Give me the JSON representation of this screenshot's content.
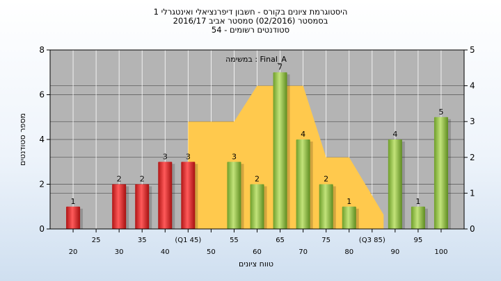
{
  "chart_data": {
    "type": "bar",
    "title_lines": [
      "היסטוגרמת ציונים בקורס - חשבון דיפרנציאלי ואינטגרלי 1",
      "בסמסטר  (02/2016)  סמסטר אביב 2016/17",
      "סטודנטים רשומים - 54"
    ],
    "subtitle": "במשימה : Final_A",
    "xlabel": "טווח ציונים",
    "ylabel": "מספר סטודנטים",
    "ylim": [
      0,
      8
    ],
    "y_ticks": [
      0,
      2,
      4,
      6,
      8
    ],
    "y2lim": [
      0,
      5
    ],
    "y2_ticks": [
      0,
      1,
      2,
      3,
      4,
      5
    ],
    "grid": true,
    "x_range": [
      15,
      105
    ],
    "x_ticks_lower": [
      {
        "x": 20,
        "label": "20"
      },
      {
        "x": 30,
        "label": "30"
      },
      {
        "x": 40,
        "label": "40"
      },
      {
        "x": 50,
        "label": "50"
      },
      {
        "x": 60,
        "label": "60"
      },
      {
        "x": 70,
        "label": "70"
      },
      {
        "x": 80,
        "label": "80"
      },
      {
        "x": 90,
        "label": "90"
      },
      {
        "x": 100,
        "label": "100"
      }
    ],
    "x_ticks_upper": [
      {
        "x": 25,
        "label": "25"
      },
      {
        "x": 35,
        "label": "35"
      },
      {
        "x": 45,
        "label": "(Q1 45)"
      },
      {
        "x": 55,
        "label": "55"
      },
      {
        "x": 65,
        "label": "65"
      },
      {
        "x": 75,
        "label": "75"
      },
      {
        "x": 85,
        "label": "(Q3 85)"
      },
      {
        "x": 95,
        "label": "95"
      }
    ],
    "bars": [
      {
        "x": 20,
        "value": 1,
        "label": "1",
        "color": "#e02020"
      },
      {
        "x": 30,
        "value": 2,
        "label": "2",
        "color": "#e02020"
      },
      {
        "x": 35,
        "value": 2,
        "label": "2",
        "color": "#e02020"
      },
      {
        "x": 40,
        "value": 3,
        "label": "3",
        "color": "#e02020"
      },
      {
        "x": 45,
        "value": 3,
        "label": "3",
        "color": "#e02020"
      },
      {
        "x": 55,
        "value": 3,
        "label": "3",
        "color": "#8cc63f"
      },
      {
        "x": 60,
        "value": 2,
        "label": "2",
        "color": "#8cc63f"
      },
      {
        "x": 65,
        "value": 7,
        "label": "7",
        "color": "#8cc63f"
      },
      {
        "x": 70,
        "value": 4,
        "label": "4",
        "color": "#8cc63f"
      },
      {
        "x": 75,
        "value": 2,
        "label": "2",
        "color": "#8cc63f"
      },
      {
        "x": 80,
        "value": 1,
        "label": "1",
        "color": "#8cc63f"
      },
      {
        "x": 90,
        "value": 4,
        "label": "4",
        "color": "#8cc63f"
      },
      {
        "x": 95,
        "value": 1,
        "label": "1",
        "color": "#8cc63f"
      },
      {
        "x": 100,
        "value": 5,
        "label": "5",
        "color": "#8cc63f"
      }
    ],
    "area_series": {
      "color": "#ffc94d",
      "axis": "right",
      "points": [
        {
          "x": 45,
          "y": 3
        },
        {
          "x": 55,
          "y": 3
        },
        {
          "x": 60,
          "y": 4
        },
        {
          "x": 70,
          "y": 4
        },
        {
          "x": 75,
          "y": 2
        },
        {
          "x": 80,
          "y": 2
        },
        {
          "x": 87.5,
          "y": 0.4
        }
      ]
    },
    "plot_background": "#b4b4b4"
  }
}
